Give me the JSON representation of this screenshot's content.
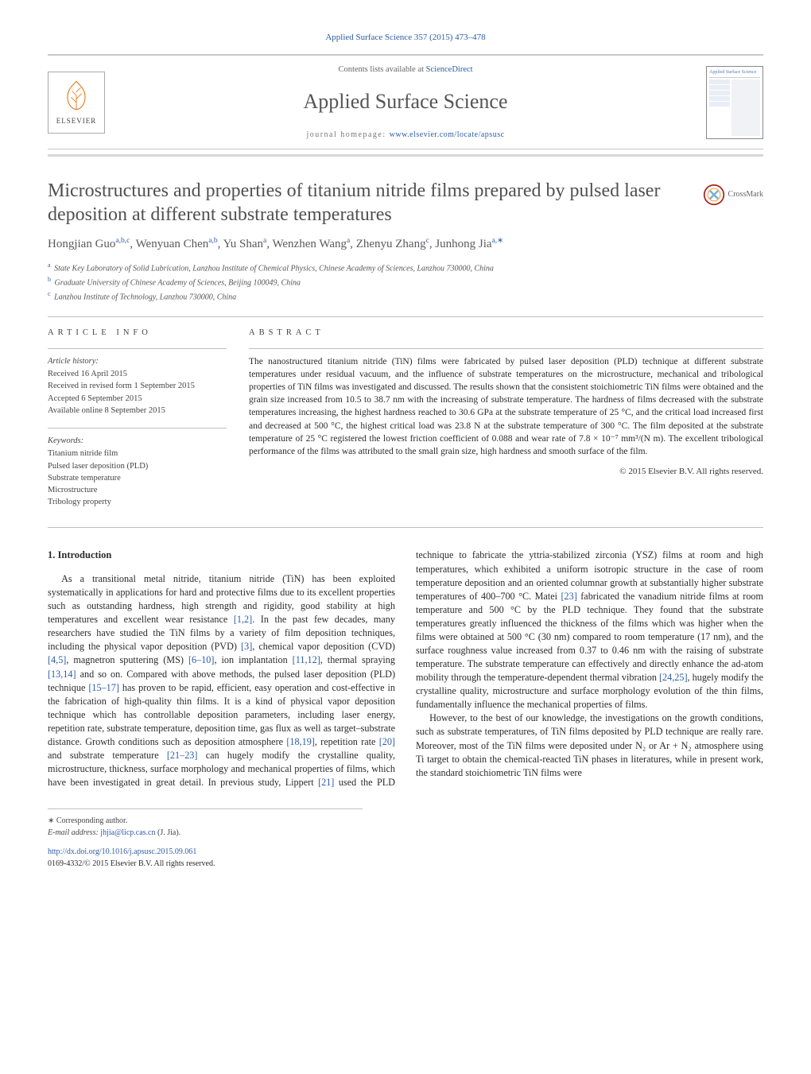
{
  "journal_ref": "Applied Surface Science 357 (2015) 473–478",
  "header": {
    "contents_prefix": "Contents lists available at ",
    "contents_link": "ScienceDirect",
    "journal_title": "Applied Surface Science",
    "homepage_prefix": "journal homepage: ",
    "homepage_link": "www.elsevier.com/locate/apsusc",
    "elsevier_brand": "ELSEVIER",
    "cover_thumb_title": "Applied Surface Science"
  },
  "crossmark_label": "CrossMark",
  "title": "Microstructures and properties of titanium nitride films prepared by pulsed laser deposition at different substrate temperatures",
  "authors_html": "Hongjian Guo<sup>a,b,c</sup>, Wenyuan Chen<sup>a,b</sup>, Yu Shan<sup>a</sup>, Wenzhen Wang<sup>a</sup>, Zhenyu Zhang<sup>c</sup>, Junhong Jia<sup>a,∗</sup>",
  "affiliations": [
    {
      "sup": "a",
      "text": "State Key Laboratory of Solid Lubrication, Lanzhou Institute of Chemical Physics, Chinese Academy of Sciences, Lanzhou 730000, China"
    },
    {
      "sup": "b",
      "text": "Graduate University of Chinese Academy of Sciences, Beijing 100049, China"
    },
    {
      "sup": "c",
      "text": "Lanzhou Institute of Technology, Lanzhou 730000, China"
    }
  ],
  "info_label": "ARTICLE INFO",
  "abstract_label": "ABSTRACT",
  "history": {
    "label": "Article history:",
    "lines": [
      "Received 16 April 2015",
      "Received in revised form 1 September 2015",
      "Accepted 6 September 2015",
      "Available online 8 September 2015"
    ]
  },
  "keywords": {
    "label": "Keywords:",
    "items": [
      "Titanium nitride film",
      "Pulsed laser deposition (PLD)",
      "Substrate temperature",
      "Microstructure",
      "Tribology property"
    ]
  },
  "abstract": "The nanostructured titanium nitride (TiN) films were fabricated by pulsed laser deposition (PLD) technique at different substrate temperatures under residual vacuum, and the influence of substrate temperatures on the microstructure, mechanical and tribological properties of TiN films was investigated and discussed. The results shown that the consistent stoichiometric TiN films were obtained and the grain size increased from 10.5 to 38.7 nm with the increasing of substrate temperature. The hardness of films decreased with the substrate temperatures increasing, the highest hardness reached to 30.6 GPa at the substrate temperature of 25 °C, and the critical load increased first and decreased at 500 °C, the highest critical load was 23.8 N at the substrate temperature of 300 °C. The film deposited at the substrate temperature of 25 °C registered the lowest friction coefficient of 0.088 and wear rate of 7.8 × 10⁻⁷ mm³/(N m). The excellent tribological performance of the films was attributed to the small grain size, high hardness and smooth surface of the film.",
  "copyright": "© 2015 Elsevier B.V. All rights reserved.",
  "section_heading": "1. Introduction",
  "body_html": "<p>As a transitional metal nitride, titanium nitride (TiN) has been exploited systematically in applications for hard and protective films due to its excellent properties such as outstanding hardness, high strength and rigidity, good stability at high temperatures and excellent wear resistance <a class='ref'>[1,2]</a>. In the past few decades, many researchers have studied the TiN films by a variety of film deposition techniques, including the physical vapor deposition (PVD) <a class='ref'>[3]</a>, chemical vapor deposition (CVD) <a class='ref'>[4,5]</a>, magnetron sputtering (MS) <a class='ref'>[6–10]</a>, ion implantation <a class='ref'>[11,12]</a>, thermal spraying <a class='ref'>[13,14]</a> and so on. Compared with above methods, the pulsed laser deposition (PLD) technique <a class='ref'>[15–17]</a> has proven to be rapid, efficient, easy operation and cost-effective in the fabrication of high-quality thin films. It is a kind of physical vapor deposition technique which has controllable deposition parameters, including laser energy, repetition rate, substrate temperature, deposition time, gas flux as well as target–substrate distance. Growth conditions such as deposition atmosphere <a class='ref'>[18,19]</a>, repetition rate <a class='ref'>[20]</a> and substrate temperature <a class='ref'>[21–23]</a> can hugely modify the crystalline quality, microstructure, thickness, surface morphology and mechanical properties of films, which have been investigated in great detail. In previous study, Lippert <a class='ref'>[21]</a> used the PLD technique to fabricate the yttria-stabilized zirconia (YSZ) films at room and high temperatures, which exhibited a uniform isotropic structure in the case of room temperature deposition and an oriented columnar growth at substantially higher substrate temperatures of 400–700 °C. Matei <a class='ref'>[23]</a> fabricated the vanadium nitride films at room temperature and 500 °C by the PLD technique. They found that the substrate temperatures greatly influenced the thickness of the films which was higher when the films were obtained at 500 °C (30 nm) compared to room temperature (17 nm), and the surface roughness value increased from 0.37 to 0.46 nm with the raising of substrate temperature. The substrate temperature can effectively and directly enhance the ad-atom mobility through the temperature-dependent thermal vibration <a class='ref'>[24,25]</a>, hugely modify the crystalline quality, microstructure and surface morphology evolution of the thin films, fundamentally influence the mechanical properties of films.</p><p>However, to the best of our knowledge, the investigations on the growth conditions, such as substrate temperatures, of TiN films deposited by PLD technique are really rare. Moreover, most of the TiN films were deposited under N₂ or Ar + N₂ atmosphere using Ti target to obtain the chemical-reacted TiN phases in literatures, while in present work, the standard stoichiometric TiN films were</p>",
  "footer": {
    "corr_label": "∗ Corresponding author.",
    "email_label": "E-mail address: ",
    "email": "jhjia@licp.cas.cn",
    "email_name": " (J. Jia).",
    "doi_link": "http://dx.doi.org/10.1016/j.apsusc.2015.09.061",
    "issn_line": "0169-4332/© 2015 Elsevier B.V. All rights reserved."
  },
  "colors": {
    "link": "#2d5ca6",
    "text": "#2b2b2b",
    "muted": "#666666",
    "rule": "#bfbfbf",
    "elsevier_orange": "#e77817"
  },
  "typography": {
    "body_pt": 12.2,
    "title_pt": 24,
    "journal_title_pt": 26,
    "abstract_pt": 11.5,
    "small_pt": 10
  }
}
